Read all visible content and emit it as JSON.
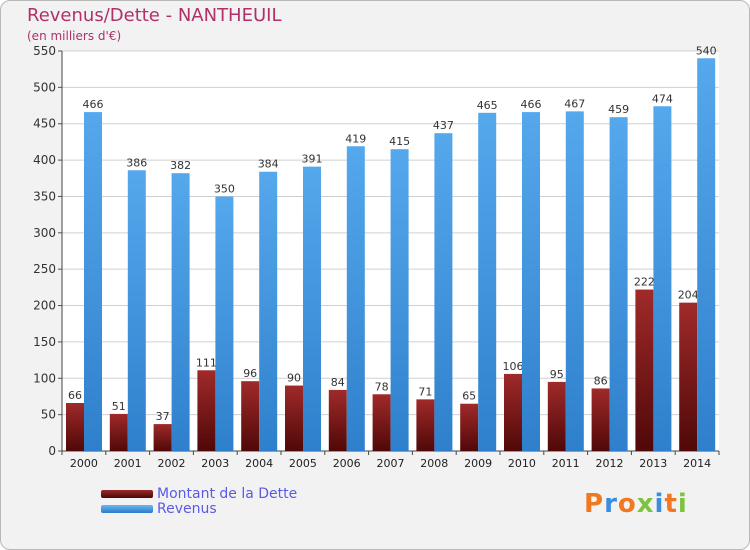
{
  "chart_data": {
    "type": "bar",
    "title": "Revenus/Dette - NANTHEUIL",
    "subtitle": "(en milliers d'€)",
    "categories": [
      "2000",
      "2001",
      "2002",
      "2003",
      "2004",
      "2005",
      "2006",
      "2007",
      "2008",
      "2009",
      "2010",
      "2011",
      "2012",
      "2013",
      "2014"
    ],
    "series": [
      {
        "name": "Montant de la Dette",
        "color": "#7a1a1a",
        "values": [
          66,
          51,
          37,
          111,
          96,
          90,
          84,
          78,
          71,
          65,
          106,
          95,
          86,
          222,
          204
        ]
      },
      {
        "name": "Revenus",
        "color": "#4a9ee0",
        "values": [
          466,
          386,
          382,
          350,
          384,
          391,
          419,
          415,
          437,
          465,
          466,
          467,
          459,
          474,
          540
        ]
      }
    ],
    "ylim": [
      0,
      550
    ],
    "yticks": [
      0,
      50,
      100,
      150,
      200,
      250,
      300,
      350,
      400,
      450,
      500,
      550
    ],
    "grid": true,
    "legend": "bottom-left"
  },
  "logo": {
    "text": "Proxiti",
    "colors": [
      "#f07820",
      "#3a8ee0",
      "#f07820",
      "#7cc440",
      "#3a8ee0",
      "#f07820",
      "#7cc440"
    ]
  }
}
